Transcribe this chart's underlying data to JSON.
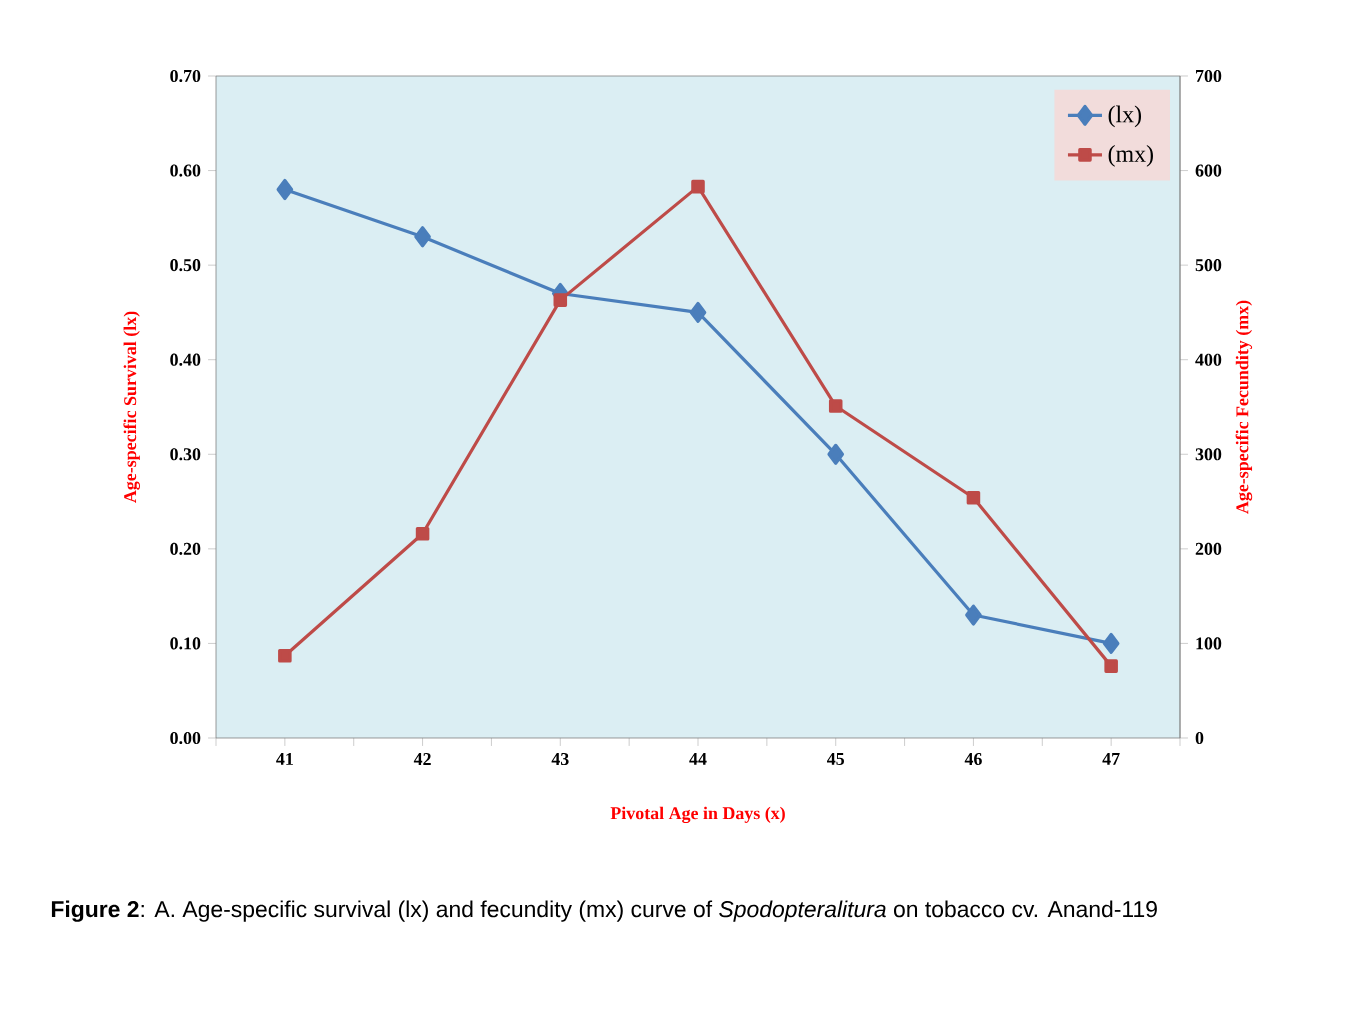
{
  "chart_data": {
    "type": "line",
    "xlabel": "Pivotal Age in Days (x)",
    "ylabel": "Age-specific Survival (lx)",
    "y2label": "Age-specific Fecundity (mx)",
    "categories": [
      "41",
      "42",
      "43",
      "44",
      "45",
      "46",
      "47"
    ],
    "series": [
      {
        "name": "(lx)",
        "color": "#4a7ebb",
        "marker": "diamond",
        "values": [
          0.58,
          0.53,
          0.47,
          0.45,
          0.3,
          0.13,
          0.1
        ]
      },
      {
        "name": "(mx)",
        "color": "#be4b48",
        "marker": "square",
        "axis": "y2",
        "values": [
          87,
          216,
          463,
          583,
          351,
          254,
          76
        ]
      }
    ],
    "ylim": [
      0,
      0.7
    ],
    "yticks": [
      {
        "value": 0,
        "label": "0.00"
      },
      {
        "value": 0.1,
        "label": "0.10"
      },
      {
        "value": 0.2,
        "label": "0.20"
      },
      {
        "value": 0.3,
        "label": "0.30"
      },
      {
        "value": 0.4,
        "label": "0.40"
      },
      {
        "value": 0.5,
        "label": "0.50"
      },
      {
        "value": 0.6,
        "label": "0.60"
      },
      {
        "value": 0.7,
        "label": "0.70"
      }
    ],
    "y2lim": [
      0,
      700
    ],
    "y2ticks": [
      0,
      100,
      200,
      300,
      400,
      500,
      600,
      700
    ],
    "legend": "top right",
    "annotations": [
      "**Figure 2**: A. Age-specific survival (lx) and fecundity (mx) curve of *Spodopteralitura* on tobacco cv. Anand-119"
    ]
  }
}
